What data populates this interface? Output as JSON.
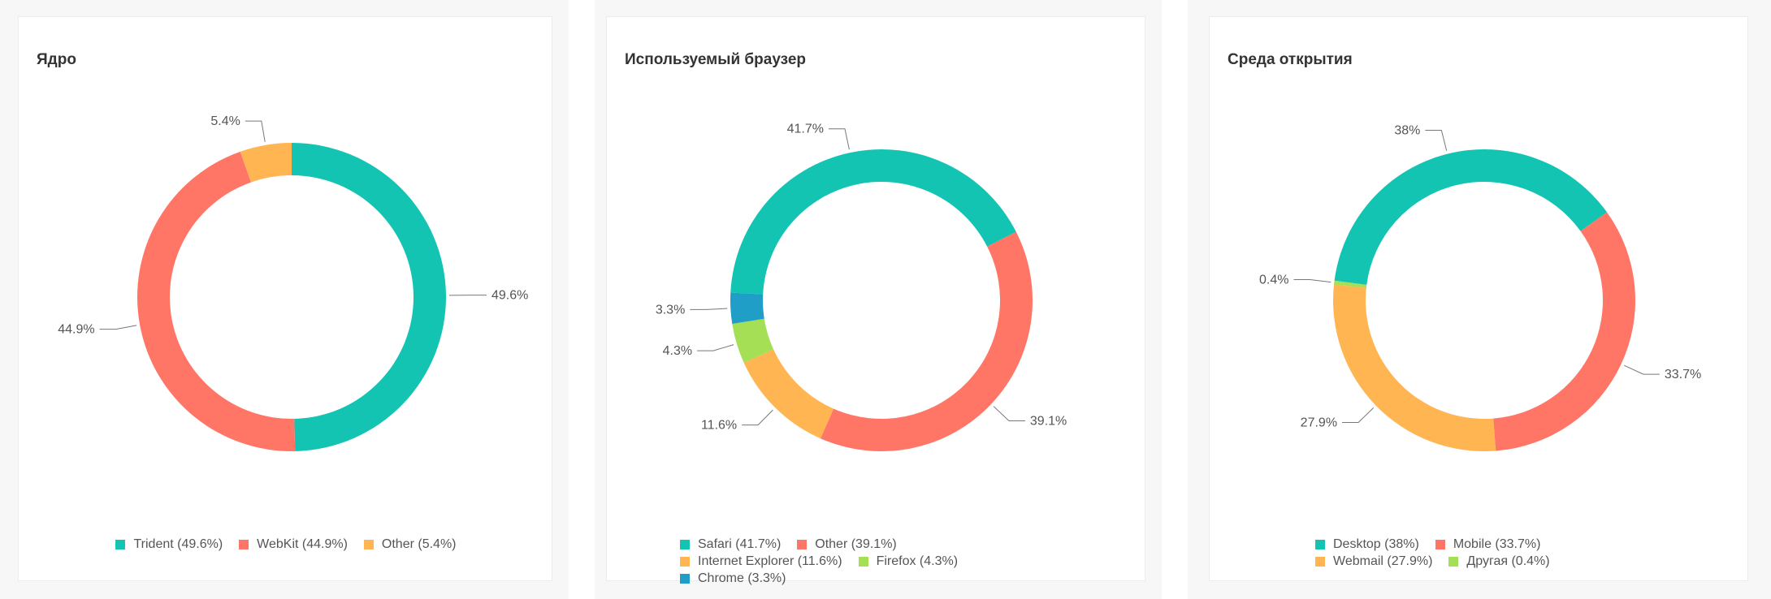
{
  "colors": {
    "teal": "#13c4b3",
    "coral": "#ff7666",
    "orange": "#ffb552",
    "green": "#a5df55",
    "blue": "#1f9fc8"
  },
  "chart_data": [
    {
      "type": "pie",
      "donut": true,
      "title": "Ядро",
      "slices": [
        {
          "name": "Trident",
          "value": 49.6,
          "label": "49.6%",
          "legend": "Trident (49.6%)",
          "color": "#13c4b3"
        },
        {
          "name": "WebKit",
          "value": 44.9,
          "label": "44.9%",
          "legend": "WebKit (44.9%)",
          "color": "#ff7666"
        },
        {
          "name": "Other",
          "value": 5.4,
          "label": "5.4%",
          "legend": "Other (5.4%)",
          "color": "#ffb552"
        }
      ],
      "legend_position": "bottom"
    },
    {
      "type": "pie",
      "donut": true,
      "title": "Используемый браузер",
      "slices": [
        {
          "name": "Safari",
          "value": 41.7,
          "label": "41.7%",
          "legend": "Safari (41.7%)",
          "color": "#13c4b3"
        },
        {
          "name": "Other",
          "value": 39.1,
          "label": "39.1%",
          "legend": "Other (39.1%)",
          "color": "#ff7666"
        },
        {
          "name": "Internet Explorer",
          "value": 11.6,
          "label": "11.6%",
          "legend": "Internet Explorer (11.6%)",
          "color": "#ffb552"
        },
        {
          "name": "Firefox",
          "value": 4.3,
          "label": "4.3%",
          "legend": "Firefox (4.3%)",
          "color": "#a5df55"
        },
        {
          "name": "Chrome",
          "value": 3.3,
          "label": "3.3%",
          "legend": "Chrome (3.3%)",
          "color": "#1f9fc8"
        }
      ],
      "legend_position": "bottom"
    },
    {
      "type": "pie",
      "donut": true,
      "title": "Среда открытия",
      "slices": [
        {
          "name": "Desktop",
          "value": 38,
          "label": "38%",
          "legend": "Desktop (38%)",
          "color": "#13c4b3"
        },
        {
          "name": "Mobile",
          "value": 33.7,
          "label": "33.7%",
          "legend": "Mobile (33.7%)",
          "color": "#ff7666"
        },
        {
          "name": "Webmail",
          "value": 27.9,
          "label": "27.9%",
          "legend": "Webmail (27.9%)",
          "color": "#ffb552"
        },
        {
          "name": "Другая",
          "value": 0.4,
          "label": "0.4%",
          "legend": "Другая (0.4%)",
          "color": "#a5df55"
        }
      ],
      "legend_position": "bottom"
    }
  ]
}
